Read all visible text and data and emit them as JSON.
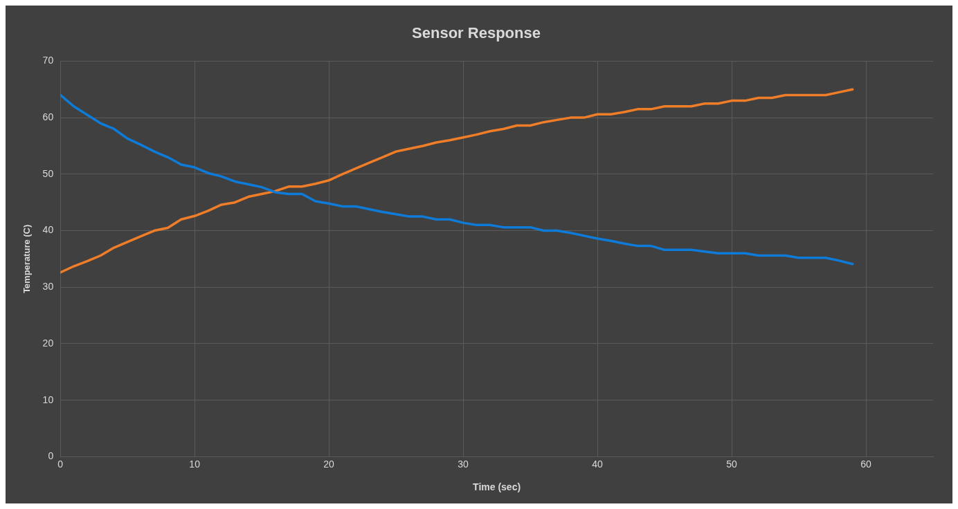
{
  "chart_data": {
    "type": "line",
    "title": "Sensor Response",
    "xlabel": "Time (sec)",
    "ylabel": "Temperature (C)",
    "x": [
      0,
      1,
      2,
      3,
      4,
      5,
      6,
      7,
      8,
      9,
      10,
      11,
      12,
      13,
      14,
      15,
      16,
      17,
      18,
      19,
      20,
      21,
      22,
      23,
      24,
      25,
      26,
      27,
      28,
      29,
      30,
      31,
      32,
      33,
      34,
      35,
      36,
      37,
      38,
      39,
      40,
      41,
      42,
      43,
      44,
      45,
      46,
      47,
      48,
      49,
      50,
      51,
      52,
      53,
      54,
      55,
      56,
      57,
      58,
      59
    ],
    "series": [
      {
        "color": "#0f7bd8",
        "values": [
          64,
          62,
          60.5,
          59,
          58,
          56.3,
          55.2,
          54,
          53,
          51.7,
          51.2,
          50.2,
          49.6,
          48.7,
          48.2,
          47.7,
          46.8,
          46.5,
          46.5,
          45.2,
          44.8,
          44.3,
          44.3,
          43.8,
          43.3,
          42.9,
          42.5,
          42.5,
          42,
          42,
          41.4,
          41,
          41,
          40.6,
          40.6,
          40.6,
          40,
          40,
          39.6,
          39.1,
          38.6,
          38.2,
          37.7,
          37.3,
          37.3,
          36.6,
          36.6,
          36.6,
          36.3,
          36,
          36,
          36,
          35.6,
          35.6,
          35.6,
          35.2,
          35.2,
          35.2,
          34.7,
          34.1
        ]
      },
      {
        "color": "#f07d28",
        "values": [
          32.6,
          33.7,
          34.6,
          35.6,
          37,
          38,
          39,
          40,
          40.5,
          42,
          42.6,
          43.5,
          44.6,
          45,
          46,
          46.5,
          47,
          47.8,
          47.8,
          48.3,
          48.9,
          50,
          51,
          52,
          53,
          54,
          54.5,
          55,
          55.6,
          56,
          56.5,
          57,
          57.6,
          58,
          58.6,
          58.6,
          59.2,
          59.6,
          60,
          60,
          60.6,
          60.6,
          61,
          61.5,
          61.5,
          62,
          62,
          62,
          62.5,
          62.5,
          63,
          63,
          63.5,
          63.5,
          64,
          64,
          64,
          64,
          64.5,
          65
        ]
      }
    ],
    "xlim": [
      0,
      65
    ],
    "xticks": [
      0,
      10,
      20,
      30,
      40,
      50,
      60
    ],
    "ylim": [
      0,
      70
    ],
    "yticks": [
      0,
      10,
      20,
      30,
      40,
      50,
      60,
      70
    ],
    "grid": true,
    "legend": false,
    "marker": "none",
    "line_style": "solid"
  }
}
